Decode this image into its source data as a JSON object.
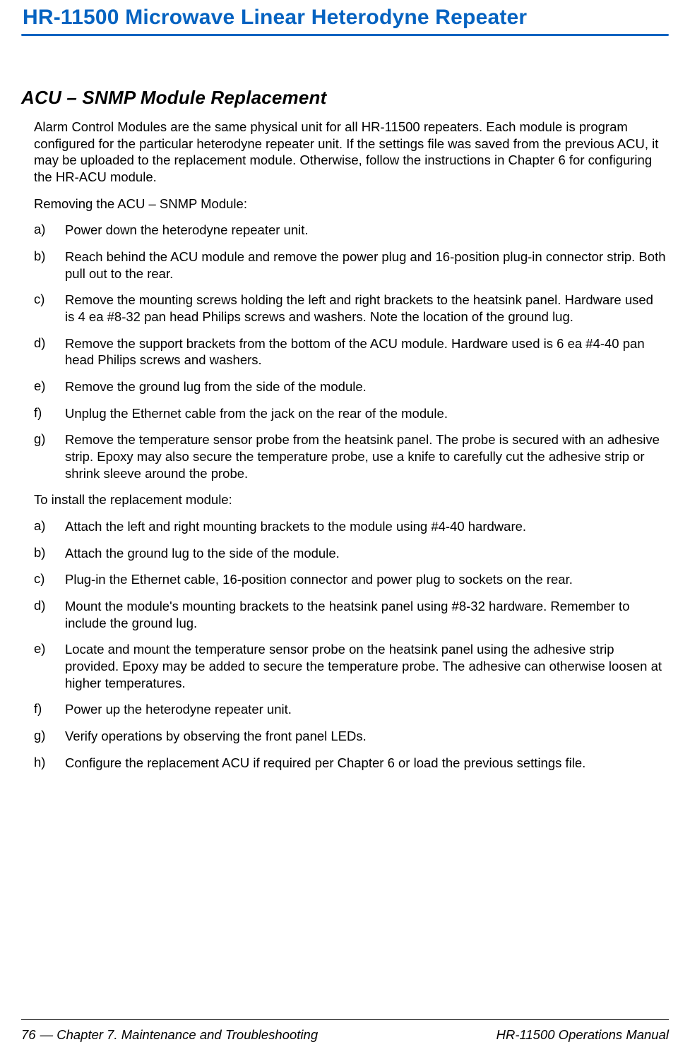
{
  "colors": {
    "accent": "#0563c1",
    "text": "#000000",
    "background": "#ffffff"
  },
  "typography": {
    "header_fontsize": 30,
    "section_fontsize": 26,
    "body_fontsize": 18.5,
    "font_family": "Arial"
  },
  "header": {
    "title": "HR-11500 Microwave Linear Heterodyne Repeater"
  },
  "section": {
    "title": "ACU – SNMP Module Replacement",
    "intro": "Alarm Control Modules are the same physical unit for all HR-11500 repeaters. Each module is program configured for the particular heterodyne repeater unit. If the settings file was saved from the previous ACU, it may be uploaded to the replacement module. Otherwise, follow the instructions in Chapter 6 for configuring the HR-ACU module.",
    "remove_intro": "Removing the ACU – SNMP Module:",
    "remove_steps": [
      {
        "marker": "a)",
        "text": "Power down the heterodyne repeater unit."
      },
      {
        "marker": "b)",
        "text": "Reach behind the ACU module and remove the power plug and 16-position plug-in connector strip. Both pull out to the rear."
      },
      {
        "marker": "c)",
        "text": "Remove the mounting screws holding the left and right brackets to the heatsink panel. Hardware used is 4 ea #8-32 pan head Philips screws and washers. Note the location of the ground lug."
      },
      {
        "marker": "d)",
        "text": "Remove the support brackets from the bottom of the ACU module. Hardware used is 6 ea #4-40 pan head Philips screws and washers."
      },
      {
        "marker": "e)",
        "text": "Remove the ground lug from the side of the module."
      },
      {
        "marker": "f)",
        "text": "Unplug the Ethernet cable from the jack on the rear of the module."
      },
      {
        "marker": "g)",
        "text": "Remove the temperature sensor probe from the heatsink panel. The probe is secured with an adhesive strip. Epoxy may also secure the temperature probe, use a knife to carefully cut the adhesive strip or shrink sleeve around the probe."
      }
    ],
    "install_intro": "To install the replacement module:",
    "install_steps": [
      {
        "marker": "a)",
        "text": "Attach the left and right mounting brackets to the module using #4-40 hardware."
      },
      {
        "marker": "b)",
        "text": "Attach the ground lug to the side of the module."
      },
      {
        "marker": "c)",
        "text": "Plug-in the Ethernet cable, 16-position connector and power plug to sockets on the rear."
      },
      {
        "marker": "d)",
        "text": "Mount the module's mounting brackets to the heatsink panel using #8-32 hardware. Remember to include the ground lug."
      },
      {
        "marker": "e)",
        "text": "Locate and mount the temperature sensor probe on the heatsink panel using the adhesive strip provided. Epoxy may be added to secure the temperature probe. The adhesive can otherwise loosen at higher temperatures."
      },
      {
        "marker": "f)",
        "text": "Power up the heterodyne repeater unit."
      },
      {
        "marker": "g)",
        "text": "Verify operations by observing the front panel LEDs."
      },
      {
        "marker": "h)",
        "text": "Configure the replacement ACU if required per Chapter 6 or load the previous settings file."
      }
    ]
  },
  "footer": {
    "page": "76",
    "left": " — Chapter 7. Maintenance and Troubleshooting",
    "right": "HR-11500 Operations Manual"
  }
}
